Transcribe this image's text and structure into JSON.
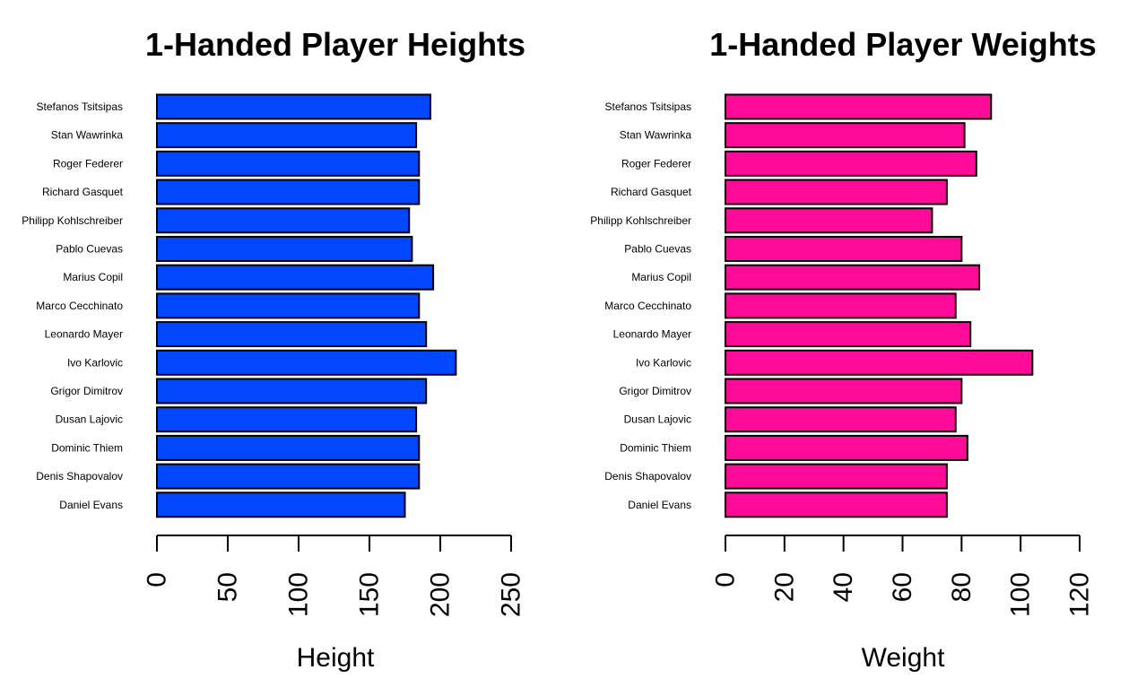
{
  "chart_data": [
    {
      "type": "bar",
      "orientation": "horizontal",
      "title": "1-Handed Player Heights",
      "xlabel": "Height",
      "ylabel": "",
      "xlim": [
        0,
        250
      ],
      "ticks": [
        0,
        50,
        100,
        150,
        200,
        250
      ],
      "tick_labels": [
        "0",
        "50",
        "100",
        "150",
        "200",
        "250"
      ],
      "color": "#0047FF",
      "grid": false,
      "categories": [
        "Stefanos Tsitsipas",
        "Stan Wawrinka",
        "Roger Federer",
        "Richard Gasquet",
        "Philipp Kohlschreiber",
        "Pablo Cuevas",
        "Marius Copil",
        "Marco Cecchinato",
        "Leonardo Mayer",
        "Ivo Karlovic",
        "Grigor Dimitrov",
        "Dusan Lajovic",
        "Dominic Thiem",
        "Denis Shapovalov",
        "Daniel Evans"
      ],
      "values": [
        193,
        183,
        185,
        185,
        178,
        180,
        195,
        185,
        190,
        211,
        190,
        183,
        185,
        185,
        175
      ]
    },
    {
      "type": "bar",
      "orientation": "horizontal",
      "title": "1-Handed Player Weights",
      "xlabel": "Weight",
      "ylabel": "",
      "xlim": [
        0,
        120
      ],
      "ticks": [
        0,
        20,
        40,
        60,
        80,
        100,
        120
      ],
      "tick_labels": [
        "0",
        "20",
        "40",
        "60",
        "80",
        "100",
        "120"
      ],
      "color": "#FF0A99",
      "grid": false,
      "categories": [
        "Stefanos Tsitsipas",
        "Stan Wawrinka",
        "Roger Federer",
        "Richard Gasquet",
        "Philipp Kohlschreiber",
        "Pablo Cuevas",
        "Marius Copil",
        "Marco Cecchinato",
        "Leonardo Mayer",
        "Ivo Karlovic",
        "Grigor Dimitrov",
        "Dusan Lajovic",
        "Dominic Thiem",
        "Denis Shapovalov",
        "Daniel Evans"
      ],
      "values": [
        90,
        81,
        85,
        75,
        70,
        80,
        86,
        78,
        83,
        104,
        80,
        78,
        82,
        75,
        75
      ]
    }
  ]
}
